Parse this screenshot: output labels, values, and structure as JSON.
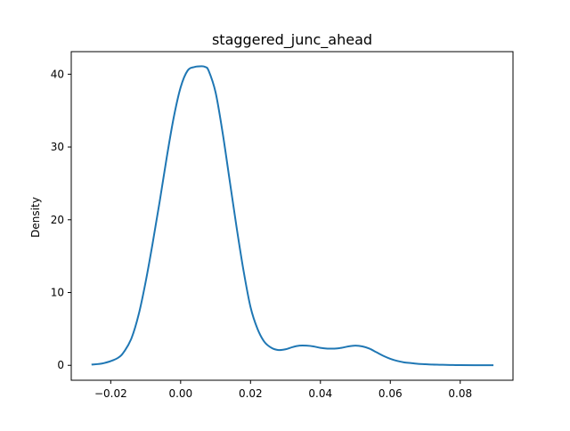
{
  "chart_data": {
    "type": "line",
    "title": "staggered_junc_ahead",
    "xlabel": "",
    "ylabel": "Density",
    "xlim": [
      -0.0313,
      0.0951
    ],
    "ylim": [
      -2.05,
      43.1
    ],
    "grid": false,
    "xticks": [
      {
        "value": -0.02,
        "label": "−0.02"
      },
      {
        "value": 0.0,
        "label": "0.00"
      },
      {
        "value": 0.02,
        "label": "0.02"
      },
      {
        "value": 0.04,
        "label": "0.04"
      },
      {
        "value": 0.06,
        "label": "0.06"
      },
      {
        "value": 0.08,
        "label": "0.08"
      }
    ],
    "yticks": [
      {
        "value": 0,
        "label": "0"
      },
      {
        "value": 10,
        "label": "10"
      },
      {
        "value": 20,
        "label": "20"
      },
      {
        "value": 30,
        "label": "30"
      },
      {
        "value": 40,
        "label": "40"
      }
    ],
    "color": "#1f77b4",
    "series": [
      {
        "x": [
          -0.0255,
          -0.022,
          -0.018,
          -0.016,
          -0.014,
          -0.012,
          -0.01,
          -0.008,
          -0.006,
          -0.004,
          -0.002,
          0.0,
          0.002,
          0.004,
          0.006,
          0.007,
          0.008,
          0.01,
          0.012,
          0.014,
          0.016,
          0.018,
          0.02,
          0.022,
          0.024,
          0.026,
          0.028,
          0.03,
          0.032,
          0.034,
          0.036,
          0.038,
          0.04,
          0.042,
          0.044,
          0.046,
          0.048,
          0.05,
          0.052,
          0.054,
          0.056,
          0.058,
          0.06,
          0.062,
          0.064,
          0.066,
          0.068,
          0.07,
          0.072,
          0.074,
          0.076,
          0.078,
          0.08,
          0.084,
          0.0895
        ],
        "y": [
          0.1,
          0.3,
          1.0,
          2.0,
          3.8,
          7.0,
          11.5,
          16.8,
          22.5,
          28.5,
          34.0,
          38.2,
          40.5,
          41.0,
          41.1,
          41.0,
          40.5,
          37.5,
          32.0,
          25.5,
          19.0,
          13.0,
          8.0,
          5.0,
          3.2,
          2.4,
          2.1,
          2.2,
          2.5,
          2.7,
          2.7,
          2.6,
          2.4,
          2.3,
          2.3,
          2.4,
          2.6,
          2.7,
          2.6,
          2.3,
          1.8,
          1.3,
          0.9,
          0.6,
          0.4,
          0.3,
          0.2,
          0.15,
          0.1,
          0.08,
          0.06,
          0.04,
          0.03,
          0.02,
          0.01
        ]
      }
    ]
  }
}
